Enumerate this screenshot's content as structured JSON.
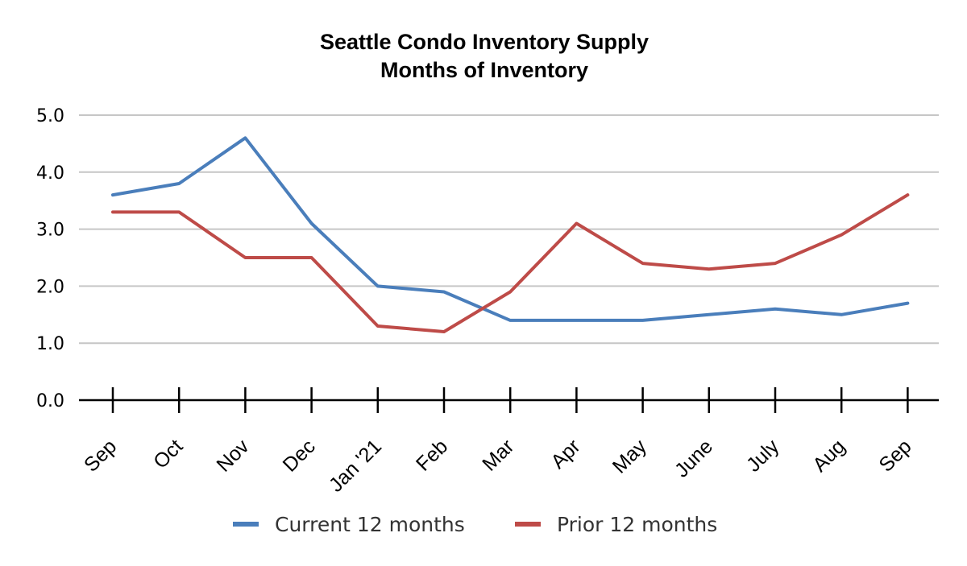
{
  "chart_data": {
    "type": "line",
    "title": "Seattle Condo Inventory Supply",
    "subtitle": "Months of Inventory",
    "xlabel": "",
    "ylabel": "",
    "ylim": [
      0,
      5
    ],
    "yticks": [
      "0.0",
      "1.0",
      "2.0",
      "3.0",
      "4.0",
      "5.0"
    ],
    "categories": [
      "Sep",
      "Oct",
      "Nov",
      "Dec",
      "Jan '21",
      "Feb",
      "Mar",
      "Apr",
      "May",
      "June",
      "July",
      "Aug",
      "Sep"
    ],
    "grid": true,
    "legend_position": "bottom",
    "series": [
      {
        "name": "Current 12 months",
        "color": "#4a7ebb",
        "values": [
          3.6,
          3.8,
          4.6,
          3.1,
          2.0,
          1.9,
          1.4,
          1.4,
          1.4,
          1.5,
          1.6,
          1.5,
          1.7
        ]
      },
      {
        "name": "Prior 12 months",
        "color": "#be4b48",
        "values": [
          3.3,
          3.3,
          2.5,
          2.5,
          1.3,
          1.2,
          1.9,
          3.1,
          2.4,
          2.3,
          2.4,
          2.9,
          3.6
        ]
      }
    ]
  }
}
